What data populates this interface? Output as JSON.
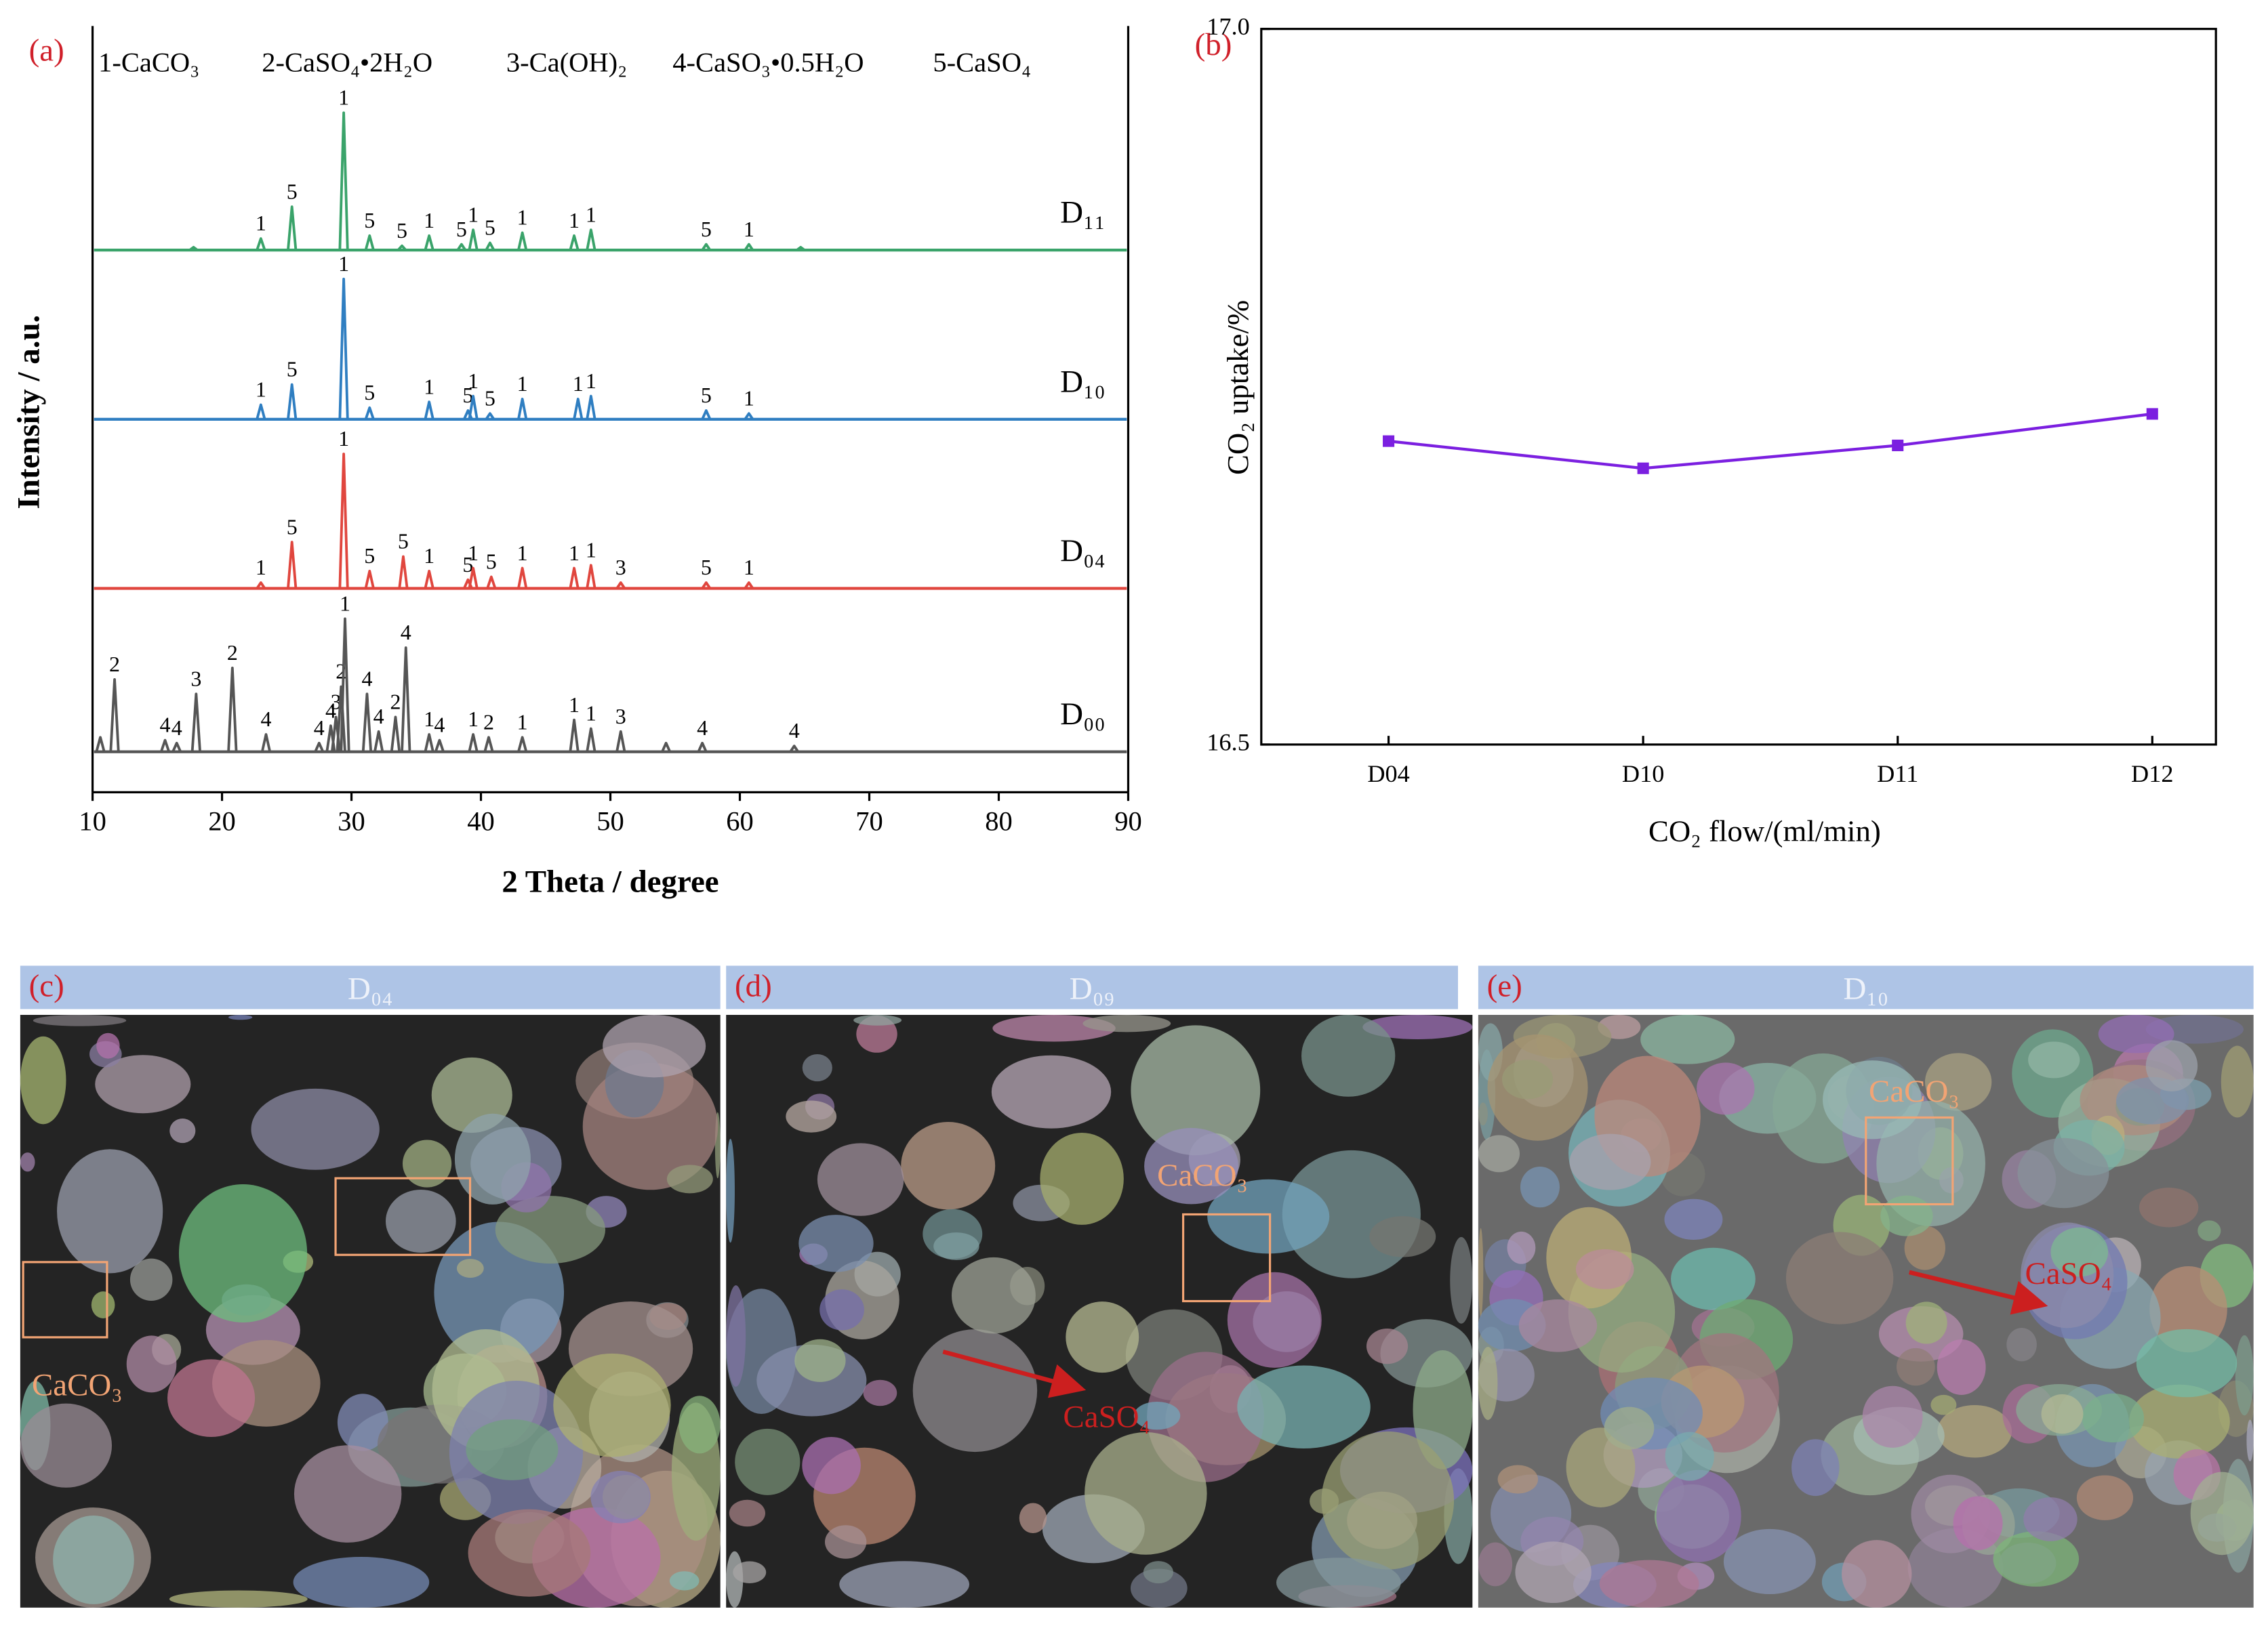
{
  "chart_data": [
    {
      "type": "spectrum",
      "panel_label": "(a)",
      "x_label": "2 Theta / degree",
      "y_label": "Intensity / a.u.",
      "phase_legend": [
        "1-CaCO₃",
        "2-CaSO₄•2H₂O",
        "3-Ca(OH)₂",
        "4-CaSO₃•0.5H₂O",
        "5-CaSO₄"
      ],
      "xlim": [
        10,
        90
      ],
      "xticks": [
        10,
        20,
        30,
        40,
        50,
        60,
        70,
        80,
        90
      ],
      "series": [
        {
          "name": "D₁₁",
          "color": "#3aa36a",
          "x": [
            17.8,
            23.0,
            25.4,
            29.4,
            31.4,
            33.9,
            36.0,
            38.5,
            39.4,
            40.7,
            43.2,
            47.2,
            48.5,
            57.4,
            60.7,
            64.7
          ],
          "values": [
            2,
            8,
            30,
            95,
            10,
            3,
            10,
            4,
            14,
            5,
            12,
            10,
            14,
            4,
            4,
            2
          ],
          "peak_labels": [
            null,
            "1",
            "5",
            "1",
            "5",
            "5",
            "1",
            "5",
            "1",
            "5",
            "1",
            "1",
            "1",
            "5",
            "1",
            null
          ]
        },
        {
          "name": "D₁₀",
          "color": "#2f7ec1",
          "x": [
            23.0,
            25.4,
            29.4,
            31.4,
            36.0,
            39.0,
            39.4,
            40.7,
            43.2,
            47.5,
            48.5,
            57.4,
            60.7
          ],
          "values": [
            10,
            24,
            97,
            8,
            12,
            6,
            16,
            4,
            14,
            14,
            16,
            6,
            4
          ],
          "peak_labels": [
            "1",
            "5",
            "1",
            "5",
            "1",
            "5",
            "1",
            "5",
            "1",
            "1",
            "1",
            "5",
            "1"
          ]
        },
        {
          "name": "D₀₄",
          "color": "#e0463e",
          "x": [
            23.0,
            25.4,
            29.4,
            31.4,
            34.0,
            36.0,
            39.0,
            39.4,
            40.8,
            43.2,
            47.2,
            48.5,
            50.8,
            57.4,
            60.7
          ],
          "values": [
            4,
            32,
            93,
            12,
            22,
            12,
            6,
            14,
            8,
            14,
            14,
            16,
            4,
            4,
            4
          ],
          "peak_labels": [
            "1",
            "5",
            "1",
            "5",
            "5",
            "1",
            "5",
            "1",
            "5",
            "1",
            "1",
            "1",
            "3",
            "5",
            "1"
          ]
        },
        {
          "name": "D₀₀",
          "color": "#555555",
          "x": [
            10.6,
            11.7,
            15.6,
            16.5,
            18.0,
            20.8,
            23.4,
            27.5,
            28.4,
            28.8,
            29.2,
            29.5,
            31.2,
            32.1,
            33.4,
            34.2,
            36.0,
            36.8,
            39.4,
            40.6,
            43.2,
            47.2,
            48.5,
            50.8,
            54.3,
            57.1,
            64.2
          ],
          "values": [
            10,
            50,
            8,
            6,
            40,
            58,
            12,
            6,
            18,
            24,
            45,
            92,
            40,
            14,
            24,
            72,
            12,
            8,
            12,
            10,
            10,
            22,
            16,
            14,
            6,
            6,
            4
          ],
          "peak_labels": [
            null,
            "2",
            "4",
            "4",
            "3",
            "2",
            "4",
            "4",
            "4",
            "3",
            "2",
            "1",
            "4",
            "4",
            "2",
            "4",
            "1",
            "4",
            "1",
            "2",
            "1",
            "1",
            "1",
            "3",
            null,
            "4",
            "4"
          ]
        }
      ]
    },
    {
      "type": "line",
      "panel_label": "(b)",
      "x_label": "CO₂ flow/(ml/min)",
      "y_label": "CO₂ uptake/%",
      "categories": [
        "D04",
        "D10",
        "D11",
        "D12"
      ],
      "series": [
        {
          "color": "#7b1fe0",
          "values": [
            16.712,
            16.693,
            16.709,
            16.731
          ]
        }
      ],
      "ylim": [
        16.5,
        17.0
      ],
      "yticks": [
        16.5,
        {
          "value": 17.0,
          "label": "17.0"
        }
      ]
    }
  ],
  "sem_panels": [
    {
      "label": "(c)",
      "sample": "D₀₄",
      "annotations": [
        "CaCO₃"
      ]
    },
    {
      "label": "(d)",
      "sample": "D₀₉",
      "annotations": [
        "CaCO₃",
        "CaSO₄"
      ]
    },
    {
      "label": "(e)",
      "sample": "D₁₀",
      "annotations": [
        "CaCO₃",
        "CaSO₄"
      ]
    }
  ]
}
